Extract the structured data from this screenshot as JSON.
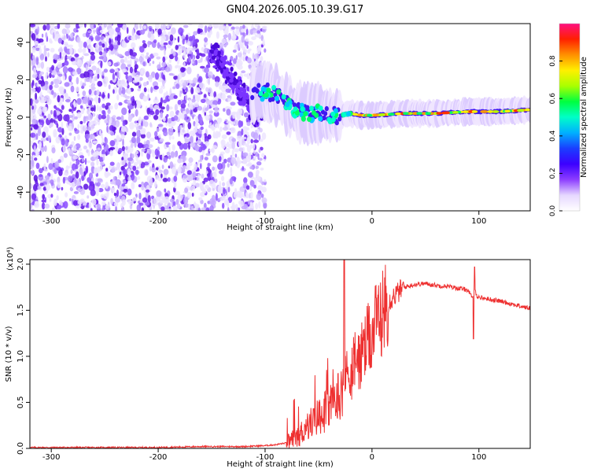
{
  "title": "GN04.2026.005.10.39.G17",
  "chart_data": [
    {
      "type": "heatmap",
      "xlabel": "Height of straight line (km)",
      "ylabel": "Frequency (Hz)",
      "xlim": [
        -320,
        148
      ],
      "ylim": [
        -50,
        50
      ],
      "x_ticks": [
        -300,
        -200,
        -100,
        0,
        100
      ],
      "y_ticks": [
        -40,
        -20,
        0,
        20,
        40
      ],
      "colorbar": {
        "label": "Normalized spectral amplitude",
        "range": [
          0,
          1
        ],
        "ticks": [
          0.0,
          0.2,
          0.4,
          0.6,
          0.8
        ],
        "colors": [
          "#ffffff",
          "#e6d8ff",
          "#8c3dff",
          "#3c00ff",
          "#1a3dff",
          "#00b0ff",
          "#00ffc8",
          "#00ff40",
          "#aaff00",
          "#fff000",
          "#ff9000",
          "#ff2000",
          "#ff1080"
        ]
      },
      "line_series": {
        "x": [
          -145,
          -128,
          -112,
          -100,
          -90,
          -80,
          -70,
          -60,
          -50,
          -40,
          -30,
          -20,
          -10,
          0,
          30,
          60,
          90,
          120,
          148
        ],
        "y": [
          33,
          22,
          12,
          14,
          12,
          7,
          3,
          2,
          2,
          1,
          1,
          2,
          1,
          1,
          2,
          2,
          3,
          3,
          4
        ]
      }
    },
    {
      "type": "line",
      "xlabel": "Height of straight line (km)",
      "ylabel": "SNR (10 * v/v)",
      "y_multiplier": "(x10⁴)",
      "xlim": [
        -320,
        148
      ],
      "ylim": [
        0,
        2.05
      ],
      "x_ticks": [
        -300,
        -200,
        -100,
        0,
        100
      ],
      "y_ticks": [
        0.0,
        0.5,
        1.0,
        1.5,
        2.0
      ],
      "line_color": "#ee3030",
      "series": [
        {
          "x": [
            -320,
            -280,
            -240,
            -200,
            -160,
            -120,
            -100,
            -90,
            -80,
            -70,
            -60,
            -50,
            -40,
            -30,
            -20,
            -10,
            0,
            10,
            20,
            30,
            40,
            50,
            60,
            70,
            80,
            90,
            94,
            96,
            98,
            100,
            110,
            120,
            130,
            140,
            148
          ],
          "y": [
            0.01,
            0.01,
            0.01,
            0.01,
            0.02,
            0.02,
            0.03,
            0.04,
            0.06,
            0.12,
            0.25,
            0.35,
            0.45,
            0.6,
            0.85,
            1.0,
            1.25,
            1.5,
            1.65,
            1.75,
            1.78,
            1.79,
            1.77,
            1.76,
            1.74,
            1.72,
            1.62,
            1.74,
            1.66,
            1.64,
            1.62,
            1.6,
            1.57,
            1.54,
            1.52
          ]
        }
      ]
    }
  ]
}
